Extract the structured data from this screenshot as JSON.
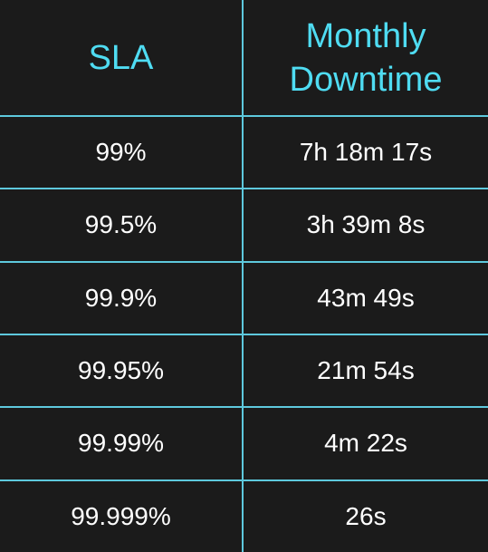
{
  "table": {
    "headers": [
      "SLA",
      "Monthly Downtime"
    ],
    "rows": [
      {
        "sla": "99%",
        "downtime": "7h 18m 17s"
      },
      {
        "sla": "99.5%",
        "downtime": "3h 39m 8s"
      },
      {
        "sla": "99.9%",
        "downtime": "43m 49s"
      },
      {
        "sla": "99.95%",
        "downtime": "21m 54s"
      },
      {
        "sla": "99.99%",
        "downtime": "4m 22s"
      },
      {
        "sla": "99.999%",
        "downtime": "26s"
      }
    ]
  },
  "colors": {
    "background": "#1b1b1b",
    "grid_lines": "#5ec9dd",
    "header_text": "#4fdcf2",
    "cell_text": "#ffffff"
  }
}
